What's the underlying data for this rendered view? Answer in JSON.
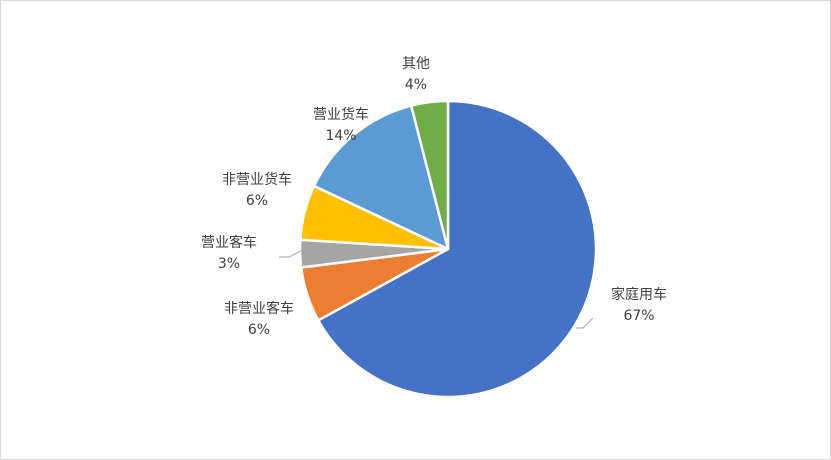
{
  "chart_data": {
    "type": "pie",
    "title": "",
    "slices": [
      {
        "category": "家庭用车",
        "value": 67,
        "label": "67%",
        "color": "#4472c4"
      },
      {
        "category": "非营业客车",
        "value": 6,
        "label": "6%",
        "color": "#ed7d31"
      },
      {
        "category": "营业客车",
        "value": 3,
        "label": "3%",
        "color": "#a5a5a5"
      },
      {
        "category": "非营业货车",
        "value": 6,
        "label": "6%",
        "color": "#ffc000"
      },
      {
        "category": "营业货车",
        "value": 14,
        "label": "14%",
        "color": "#5b9bd5"
      },
      {
        "category": "其他",
        "value": 4,
        "label": "4%",
        "color": "#70ad47"
      }
    ],
    "start": "12 o'clock",
    "direction": "clockwise",
    "legend": "none",
    "data_labels": "outside with leader lines"
  }
}
